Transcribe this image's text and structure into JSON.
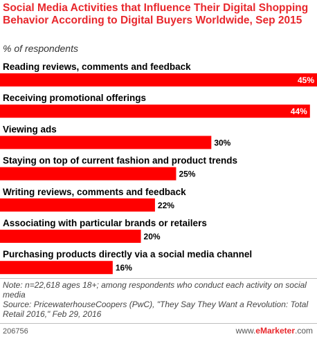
{
  "chart_data": {
    "type": "bar",
    "orientation": "horizontal",
    "title": "Social Media Activities that Influence Their Digital Shopping Behavior According to Digital Buyers Worldwide, Sep 2015",
    "subtitle": "% of respondents",
    "categories": [
      "Reading reviews, comments and feedback",
      "Receiving promotional offerings",
      "Viewing ads",
      "Staying on top of current fashion and product trends",
      "Writing reviews, comments and feedback",
      "Associating with particular brands or retailers",
      "Purchasing products directly via a social media channel"
    ],
    "values": [
      45,
      44,
      30,
      25,
      22,
      20,
      16
    ],
    "value_labels": [
      "45%",
      "44%",
      "30%",
      "25%",
      "22%",
      "20%",
      "16%"
    ],
    "unit": "%",
    "xlim": [
      0,
      45
    ],
    "grid": false,
    "legend": "none",
    "bar_color": "#ff0000"
  },
  "colors": {
    "title": "#e8272c",
    "bar": "#ff0000",
    "label_inside": "#ffffff",
    "label_outside": "#000000"
  },
  "note": "Note: n=22,618 ages 18+; among respondents who conduct each activity on social media",
  "source": "Source: PricewaterhouseCoopers (PwC), \"They Say They Want a Revolution: Total Retail 2016,\" Feb 29, 2016",
  "footer": {
    "chart_id": "206756",
    "brand_prefix": "www.",
    "brand_name": "eMarketer",
    "brand_suffix": ".com"
  }
}
